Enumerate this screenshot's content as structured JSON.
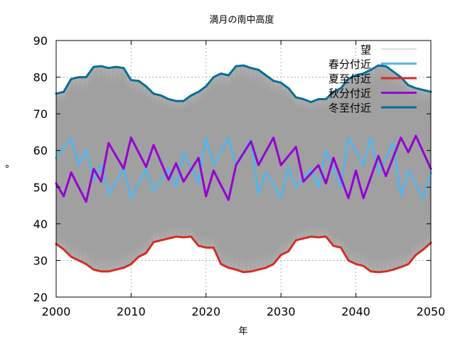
{
  "chart_data": {
    "type": "line",
    "title": "満月の南中高度",
    "xlabel": "年",
    "ylabel": "°",
    "xlim": [
      2000,
      2050
    ],
    "ylim": [
      20,
      90
    ],
    "xticks": [
      2000,
      2010,
      2020,
      2030,
      2040,
      2050
    ],
    "yticks": [
      20,
      30,
      40,
      50,
      60,
      70,
      80,
      90
    ],
    "grid": true,
    "legend_position": "top-right",
    "background_series": {
      "name": "望",
      "color": "#a0a0a0",
      "description_values": {
        "cycles_per_year": 12.37
      }
    },
    "series": [
      {
        "name": "春分付近",
        "color": "#56b4e9",
        "x": [
          2000,
          2002,
          2003,
          2004,
          2005,
          2006,
          2007,
          2009,
          2010,
          2012,
          2013,
          2015,
          2016,
          2017,
          2019,
          2020,
          2021,
          2023,
          2024,
          2026,
          2027,
          2028,
          2030,
          2031,
          2032,
          2034,
          2035,
          2036,
          2038,
          2039,
          2041,
          2042,
          2043,
          2045,
          2046,
          2047,
          2049,
          2050
        ],
        "y": [
          58,
          63.5,
          56,
          60,
          52,
          56,
          48,
          55,
          47,
          55,
          49,
          55,
          50,
          59.5,
          51,
          63.5,
          56,
          63.5,
          56,
          63,
          48,
          54,
          47,
          55.5,
          50,
          55,
          50,
          60,
          50,
          63.5,
          56,
          63.5,
          54,
          62,
          47.5,
          54.5,
          47,
          54
        ]
      },
      {
        "name": "夏至付近",
        "color": "#d62d20",
        "x": [
          2000,
          2001,
          2002,
          2003,
          2004,
          2005,
          2006,
          2007,
          2008,
          2009,
          2010,
          2011,
          2012,
          2013,
          2014,
          2015,
          2016,
          2017,
          2018,
          2019,
          2020,
          2021,
          2022,
          2023,
          2024,
          2025,
          2026,
          2027,
          2028,
          2029,
          2030,
          2031,
          2032,
          2033,
          2034,
          2035,
          2036,
          2037,
          2038,
          2039,
          2040,
          2041,
          2042,
          2043,
          2044,
          2045,
          2046,
          2047,
          2048,
          2049,
          2050
        ],
        "y": [
          34.5,
          33,
          31,
          30,
          29,
          27.5,
          27,
          27,
          27.5,
          28,
          29,
          31,
          32,
          35,
          35.5,
          36,
          36.5,
          36.3,
          36.5,
          34,
          33.5,
          33.5,
          29,
          28,
          27.5,
          26.8,
          27,
          27.5,
          28,
          29,
          31.5,
          32.5,
          35.5,
          36,
          36.5,
          36.3,
          36.5,
          34,
          33.5,
          30,
          29,
          28.5,
          27,
          26.8,
          27,
          27.5,
          28.2,
          29,
          31.5,
          33,
          34.8
        ]
      },
      {
        "name": "秋分付近",
        "color": "#9400d3",
        "x": [
          2000,
          2001,
          2002,
          2004,
          2005,
          2006,
          2007,
          2009,
          2010,
          2012,
          2013,
          2015,
          2016,
          2017,
          2019,
          2020,
          2021,
          2023,
          2024,
          2026,
          2027,
          2029,
          2030,
          2032,
          2033,
          2035,
          2036,
          2037,
          2039,
          2040,
          2041,
          2043,
          2044,
          2046,
          2047,
          2048,
          2050
        ],
        "y": [
          51,
          47.5,
          54,
          46,
          55,
          51.5,
          62,
          55,
          63.5,
          55.5,
          61.5,
          52,
          56.5,
          51.5,
          58,
          47.5,
          54.5,
          46.5,
          56,
          62.5,
          56,
          63.5,
          56,
          61,
          51.5,
          56,
          51,
          58,
          47,
          54.5,
          47,
          58.5,
          53,
          63.5,
          59.5,
          64,
          55
        ]
      },
      {
        "name": "冬至付近",
        "color": "#006e96",
        "x": [
          2000,
          2001,
          2002,
          2003,
          2004,
          2005,
          2006,
          2007,
          2008,
          2009,
          2010,
          2011,
          2012,
          2013,
          2014,
          2015,
          2016,
          2017,
          2018,
          2019,
          2020,
          2021,
          2022,
          2023,
          2024,
          2025,
          2026,
          2027,
          2028,
          2029,
          2030,
          2031,
          2032,
          2033,
          2034,
          2035,
          2036,
          2037,
          2038,
          2039,
          2040,
          2041,
          2042,
          2043,
          2044,
          2045,
          2046,
          2047,
          2048,
          2049,
          2050
        ],
        "y": [
          75.5,
          76,
          79.5,
          80,
          80,
          82.8,
          83,
          82.5,
          82.8,
          82.5,
          79.2,
          79,
          77.5,
          75.5,
          75,
          74,
          73.5,
          73.5,
          75,
          76,
          77.5,
          80,
          81,
          80.5,
          83,
          83.2,
          82.5,
          82,
          80.5,
          79,
          78.5,
          77,
          74.5,
          74,
          73.2,
          74,
          74,
          76,
          77,
          79.5,
          80.5,
          81,
          82,
          83.2,
          83,
          81.5,
          80,
          77.8,
          77,
          76.5,
          76
        ]
      }
    ]
  }
}
